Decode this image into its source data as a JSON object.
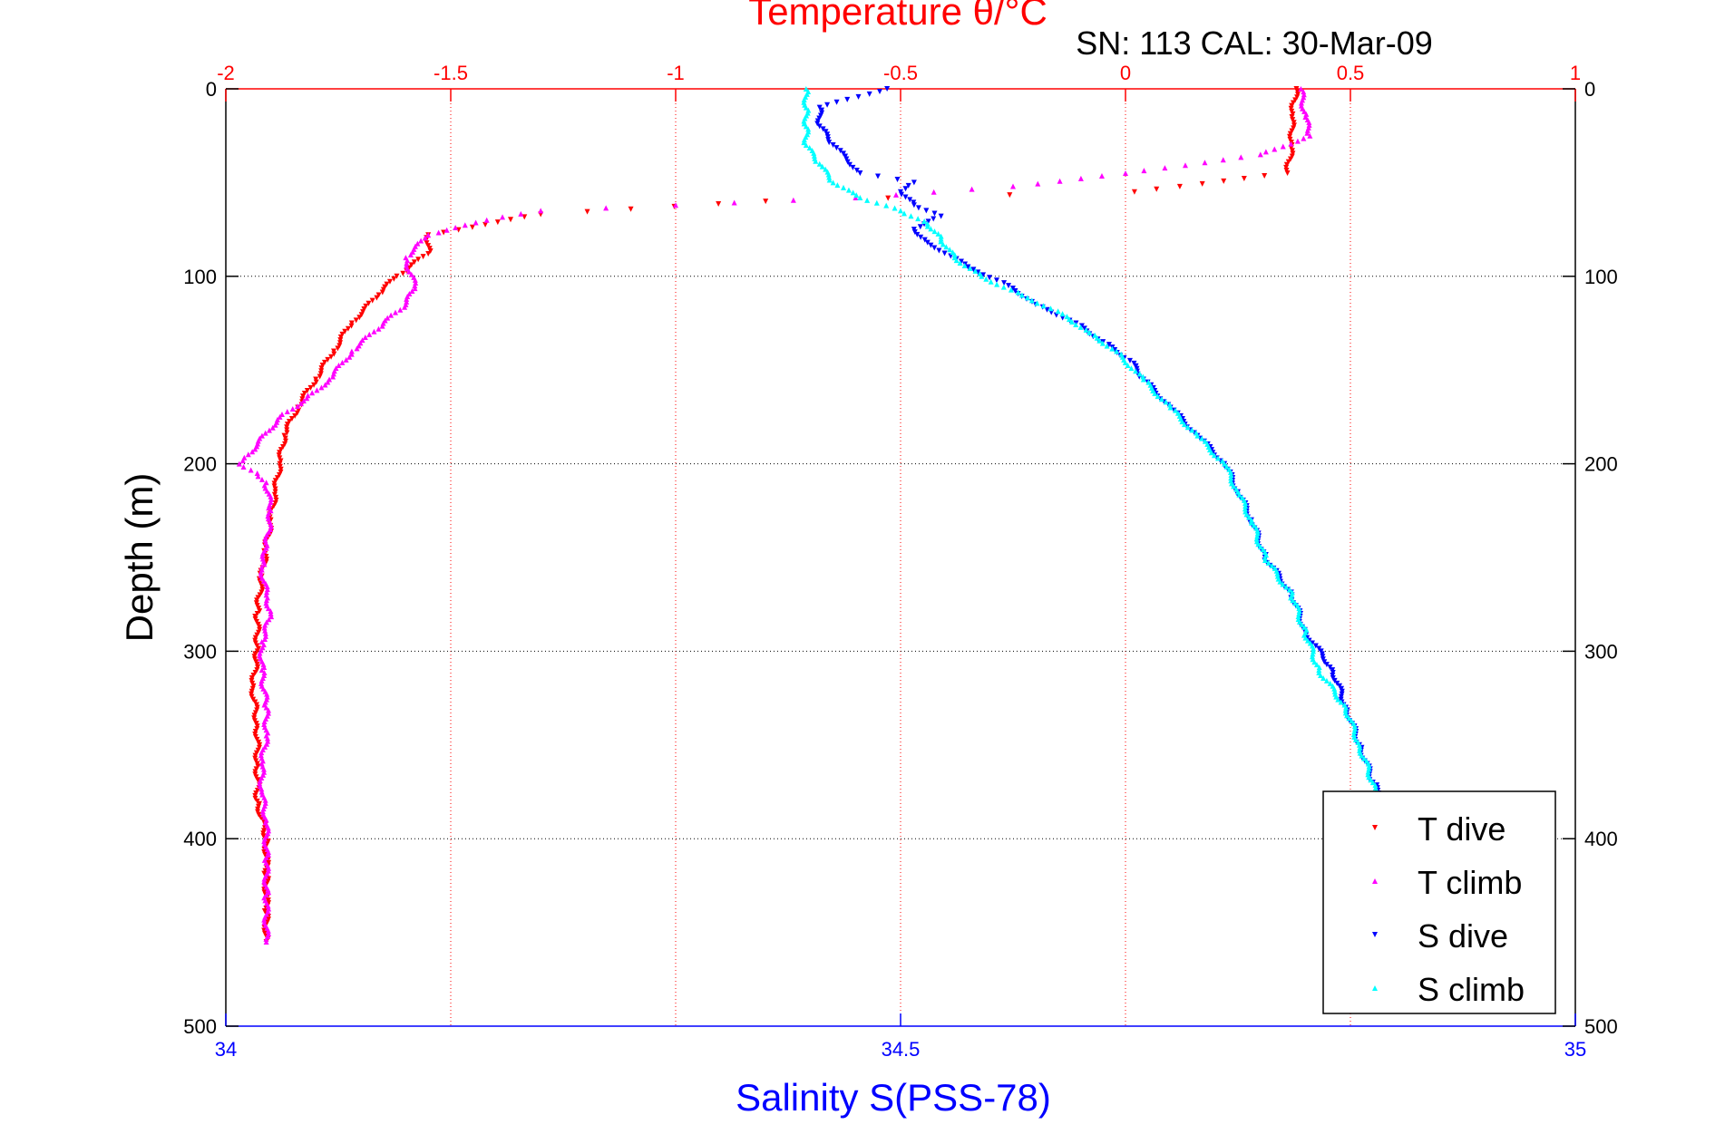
{
  "chart_data": {
    "type": "scatter",
    "top_axis_label": "Temperature θ/°C",
    "subtitle": "SN: 113  CAL: 30-Mar-09",
    "ylabel": "Depth (m)",
    "xlabel": "Salinity S(PSS-78)",
    "temperature_axis": {
      "range": [
        -2,
        1
      ],
      "ticks": [
        -2,
        -1.5,
        -1,
        -0.5,
        0,
        0.5,
        1
      ],
      "tick_labels": [
        "-2",
        "-1.5",
        "-1",
        "-0.5",
        "0",
        "0.5",
        "1"
      ],
      "color": "#ff0000"
    },
    "salinity_axis": {
      "range": [
        34,
        35
      ],
      "ticks": [
        34,
        34.5,
        35
      ],
      "tick_labels": [
        "34",
        "34.5",
        "35"
      ],
      "color": "#0000ff"
    },
    "depth_axis": {
      "range": [
        0,
        500
      ],
      "reversed": true,
      "ticks": [
        0,
        100,
        200,
        300,
        400,
        500
      ],
      "tick_labels": [
        "0",
        "100",
        "200",
        "300",
        "400",
        "500"
      ]
    },
    "grid": true,
    "legend_position": "bottom-right",
    "series": [
      {
        "name": "T dive",
        "axis": "temperature",
        "color": "#ff0000",
        "marker": "triangle-down",
        "points": [
          [
            0.38,
            0
          ],
          [
            0.37,
            15
          ],
          [
            0.37,
            30
          ],
          [
            0.36,
            45
          ],
          [
            0.02,
            55
          ],
          [
            -0.8,
            60
          ],
          [
            -1.3,
            67
          ],
          [
            -1.55,
            78
          ],
          [
            -1.55,
            88
          ],
          [
            -1.62,
            100
          ],
          [
            -1.66,
            110
          ],
          [
            -1.72,
            125
          ],
          [
            -1.76,
            140
          ],
          [
            -1.8,
            155
          ],
          [
            -1.84,
            170
          ],
          [
            -1.87,
            185
          ],
          [
            -1.88,
            200
          ],
          [
            -1.89,
            215
          ],
          [
            -1.9,
            230
          ],
          [
            -1.91,
            245
          ],
          [
            -1.92,
            260
          ],
          [
            -1.93,
            280
          ],
          [
            -1.93,
            300
          ],
          [
            -1.94,
            320
          ],
          [
            -1.93,
            340
          ],
          [
            -1.93,
            360
          ],
          [
            -1.93,
            380
          ],
          [
            -1.91,
            400
          ],
          [
            -1.91,
            420
          ],
          [
            -1.91,
            440
          ],
          [
            -1.91,
            455
          ]
        ]
      },
      {
        "name": "T climb",
        "axis": "temperature",
        "color": "#ff00ff",
        "marker": "triangle-up",
        "points": [
          [
            0.39,
            0
          ],
          [
            0.4,
            15
          ],
          [
            0.41,
            25
          ],
          [
            0.3,
            35
          ],
          [
            0.0,
            45
          ],
          [
            -0.25,
            52
          ],
          [
            -0.6,
            58
          ],
          [
            -1.0,
            62
          ],
          [
            -1.3,
            65
          ],
          [
            -1.42,
            70
          ],
          [
            -1.55,
            78
          ],
          [
            -1.6,
            90
          ],
          [
            -1.58,
            105
          ],
          [
            -1.6,
            115
          ],
          [
            -1.65,
            125
          ],
          [
            -1.72,
            140
          ],
          [
            -1.77,
            155
          ],
          [
            -1.82,
            165
          ],
          [
            -1.88,
            175
          ],
          [
            -1.95,
            195
          ],
          [
            -1.97,
            200
          ],
          [
            -1.93,
            205
          ],
          [
            -1.91,
            210
          ],
          [
            -1.9,
            225
          ],
          [
            -1.91,
            245
          ],
          [
            -1.92,
            255
          ],
          [
            -1.91,
            270
          ],
          [
            -1.9,
            280
          ],
          [
            -1.92,
            295
          ],
          [
            -1.92,
            310
          ],
          [
            -1.91,
            330
          ],
          [
            -1.91,
            345
          ],
          [
            -1.92,
            360
          ],
          [
            -1.92,
            375
          ],
          [
            -1.91,
            390
          ],
          [
            -1.91,
            410
          ],
          [
            -1.91,
            430
          ],
          [
            -1.91,
            455
          ]
        ]
      },
      {
        "name": "S dive",
        "axis": "salinity",
        "color": "#0000ff",
        "marker": "triangle-down",
        "points": [
          [
            34.49,
            0
          ],
          [
            34.44,
            10
          ],
          [
            34.44,
            20
          ],
          [
            34.45,
            30
          ],
          [
            34.47,
            45
          ],
          [
            34.51,
            50
          ],
          [
            34.5,
            55
          ],
          [
            34.51,
            62
          ],
          [
            34.53,
            68
          ],
          [
            34.51,
            75
          ],
          [
            34.52,
            82
          ],
          [
            34.55,
            95
          ],
          [
            34.58,
            105
          ],
          [
            34.6,
            115
          ],
          [
            34.63,
            125
          ],
          [
            34.65,
            135
          ],
          [
            34.67,
            145
          ],
          [
            34.68,
            155
          ],
          [
            34.7,
            170
          ],
          [
            34.72,
            185
          ],
          [
            34.74,
            200
          ],
          [
            34.75,
            215
          ],
          [
            34.76,
            230
          ],
          [
            34.77,
            250
          ],
          [
            34.79,
            270
          ],
          [
            34.8,
            290
          ],
          [
            34.82,
            310
          ],
          [
            34.83,
            330
          ],
          [
            34.84,
            350
          ],
          [
            34.85,
            370
          ],
          [
            34.87,
            390
          ],
          [
            34.88,
            410
          ],
          [
            34.89,
            430
          ],
          [
            34.9,
            450
          ],
          [
            34.9,
            455
          ]
        ]
      },
      {
        "name": "S climb",
        "axis": "salinity",
        "color": "#00ffff",
        "marker": "triangle-up",
        "points": [
          [
            34.43,
            0
          ],
          [
            34.43,
            10
          ],
          [
            34.43,
            20
          ],
          [
            34.43,
            30
          ],
          [
            34.44,
            40
          ],
          [
            34.45,
            50
          ],
          [
            34.47,
            58
          ],
          [
            34.5,
            65
          ],
          [
            34.52,
            72
          ],
          [
            34.53,
            80
          ],
          [
            34.54,
            90
          ],
          [
            34.56,
            100
          ],
          [
            34.59,
            110
          ],
          [
            34.62,
            120
          ],
          [
            34.64,
            130
          ],
          [
            34.66,
            140
          ],
          [
            34.68,
            155
          ],
          [
            34.7,
            170
          ],
          [
            34.72,
            185
          ],
          [
            34.74,
            200
          ],
          [
            34.75,
            215
          ],
          [
            34.76,
            230
          ],
          [
            34.77,
            250
          ],
          [
            34.79,
            270
          ],
          [
            34.8,
            290
          ],
          [
            34.81,
            310
          ],
          [
            34.83,
            330
          ],
          [
            34.84,
            350
          ],
          [
            34.85,
            370
          ],
          [
            34.87,
            390
          ],
          [
            34.88,
            410
          ],
          [
            34.89,
            430
          ],
          [
            34.9,
            450
          ],
          [
            34.9,
            455
          ]
        ]
      }
    ]
  }
}
